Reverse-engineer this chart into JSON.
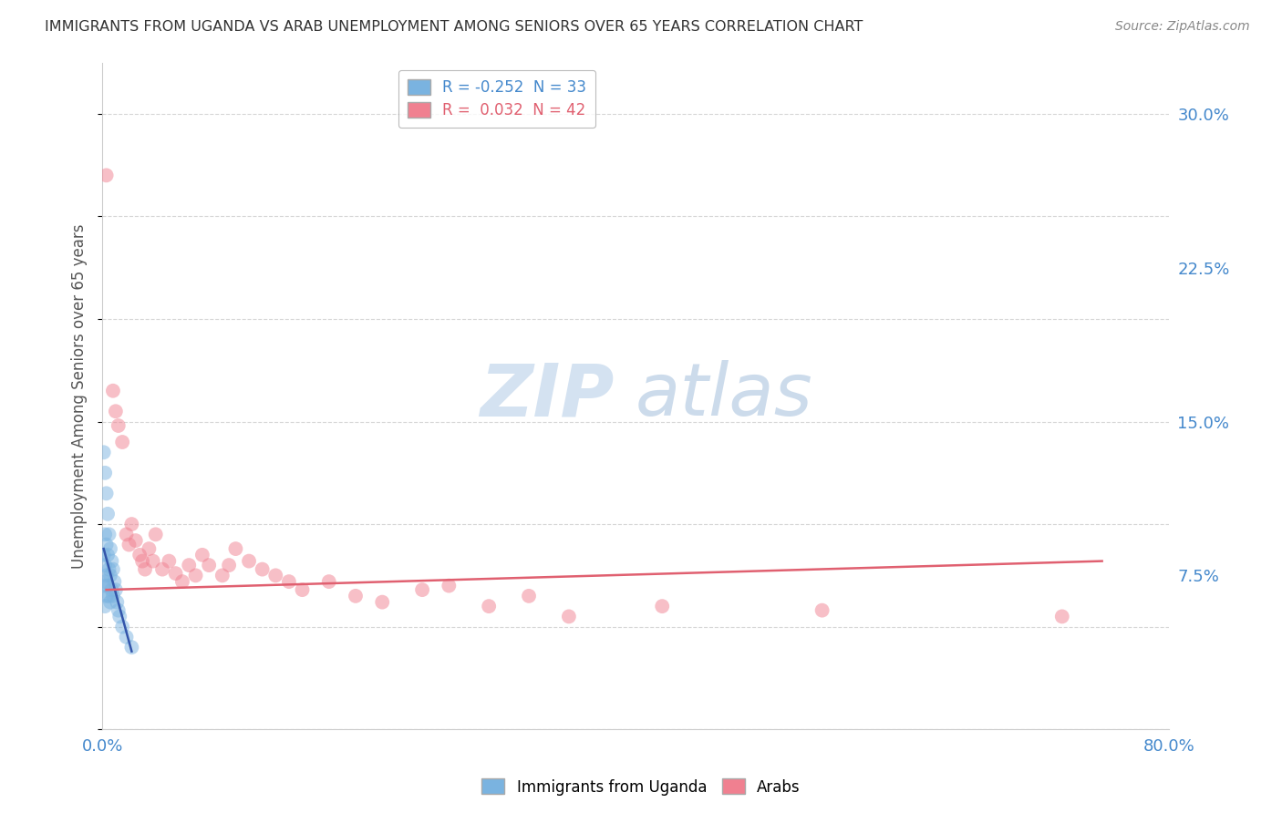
{
  "title": "IMMIGRANTS FROM UGANDA VS ARAB UNEMPLOYMENT AMONG SENIORS OVER 65 YEARS CORRELATION CHART",
  "source": "Source: ZipAtlas.com",
  "ylabel": "Unemployment Among Seniors over 65 years",
  "xlim": [
    0,
    0.8
  ],
  "ylim": [
    0,
    0.325
  ],
  "yticks": [
    0.0,
    0.075,
    0.15,
    0.225,
    0.3
  ],
  "yticklabels": [
    "",
    "7.5%",
    "15.0%",
    "22.5%",
    "30.0%"
  ],
  "xticks": [
    0.0,
    0.1,
    0.2,
    0.3,
    0.4,
    0.5,
    0.6,
    0.7,
    0.8
  ],
  "xticklabels": [
    "0.0%",
    "",
    "",
    "",
    "",
    "",
    "",
    "",
    "80.0%"
  ],
  "legend_entries": [
    {
      "label": "R = -0.252  N = 33",
      "color": "#a8c8f0"
    },
    {
      "label": "R =  0.032  N = 42",
      "color": "#f4a0b0"
    }
  ],
  "legend_labels": [
    "Immigrants from Uganda",
    "Arabs"
  ],
  "uganda_scatter_x": [
    0.001,
    0.001,
    0.001,
    0.002,
    0.002,
    0.002,
    0.002,
    0.002,
    0.003,
    0.003,
    0.003,
    0.003,
    0.004,
    0.004,
    0.004,
    0.005,
    0.005,
    0.005,
    0.006,
    0.006,
    0.006,
    0.007,
    0.007,
    0.008,
    0.008,
    0.009,
    0.01,
    0.011,
    0.012,
    0.013,
    0.015,
    0.018,
    0.022
  ],
  "uganda_scatter_y": [
    0.135,
    0.085,
    0.07,
    0.125,
    0.095,
    0.08,
    0.072,
    0.06,
    0.115,
    0.09,
    0.075,
    0.065,
    0.105,
    0.085,
    0.07,
    0.095,
    0.078,
    0.065,
    0.088,
    0.075,
    0.062,
    0.082,
    0.068,
    0.078,
    0.065,
    0.072,
    0.068,
    0.062,
    0.058,
    0.055,
    0.05,
    0.045,
    0.04
  ],
  "arab_scatter_x": [
    0.003,
    0.008,
    0.01,
    0.012,
    0.015,
    0.018,
    0.02,
    0.022,
    0.025,
    0.028,
    0.03,
    0.032,
    0.035,
    0.038,
    0.04,
    0.045,
    0.05,
    0.055,
    0.06,
    0.065,
    0.07,
    0.075,
    0.08,
    0.09,
    0.095,
    0.1,
    0.11,
    0.12,
    0.13,
    0.14,
    0.15,
    0.17,
    0.19,
    0.21,
    0.24,
    0.26,
    0.29,
    0.32,
    0.35,
    0.42,
    0.54,
    0.72
  ],
  "arab_scatter_y": [
    0.27,
    0.165,
    0.155,
    0.148,
    0.14,
    0.095,
    0.09,
    0.1,
    0.092,
    0.085,
    0.082,
    0.078,
    0.088,
    0.082,
    0.095,
    0.078,
    0.082,
    0.076,
    0.072,
    0.08,
    0.075,
    0.085,
    0.08,
    0.075,
    0.08,
    0.088,
    0.082,
    0.078,
    0.075,
    0.072,
    0.068,
    0.072,
    0.065,
    0.062,
    0.068,
    0.07,
    0.06,
    0.065,
    0.055,
    0.06,
    0.058,
    0.055
  ],
  "uganda_trendline_x": [
    0.001,
    0.022
  ],
  "uganda_trendline_y": [
    0.088,
    0.038
  ],
  "arab_trendline_x": [
    0.003,
    0.75
  ],
  "arab_trendline_y": [
    0.068,
    0.082
  ],
  "scatter_alpha": 0.5,
  "scatter_size": 130,
  "uganda_color": "#7ab3e0",
  "arab_color": "#f08090",
  "uganda_line_color": "#3355aa",
  "arab_line_color": "#e06070",
  "bg_color": "#ffffff",
  "watermark_zip": "ZIP",
  "watermark_atlas": "atlas",
  "grid_color": "#cccccc"
}
